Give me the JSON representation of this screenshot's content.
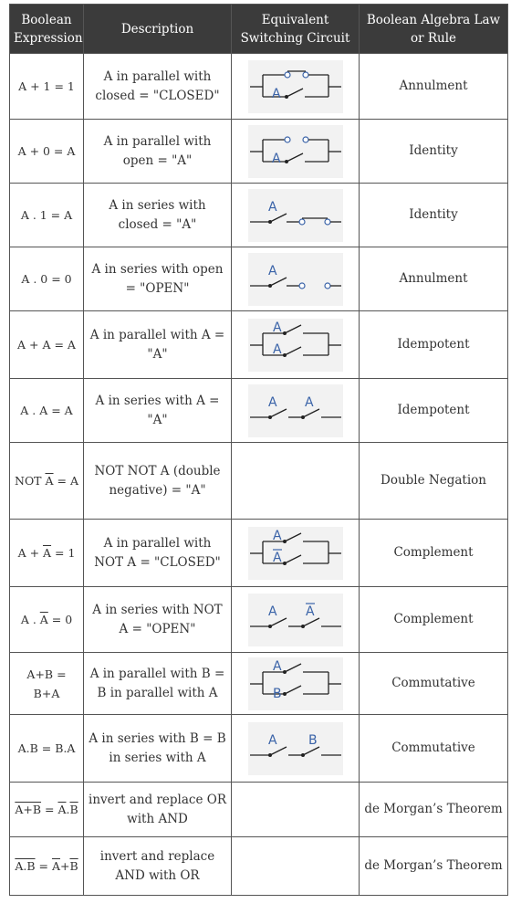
{
  "headers": {
    "expression": "Boolean Expression",
    "description": "Description",
    "circuit": "Equivalent Switching Circuit",
    "law": "Boolean Algebra Law or Rule"
  },
  "rows": [
    {
      "expr": "A + 1 = 1",
      "desc": "A in parallel with closed = \"CLOSED\"",
      "law": "Annulment",
      "circuit": "parallel-closed"
    },
    {
      "expr": "A + 0 = A",
      "desc": "A in parallel with open = \"A\"",
      "law": "Identity",
      "circuit": "parallel-open"
    },
    {
      "expr": "A . 1 = A",
      "desc": "A in series with closed = \"A\"",
      "law": "Identity",
      "circuit": "series-closed"
    },
    {
      "expr": "A . 0 = 0",
      "desc": "A in series with open = \"OPEN\"",
      "law": "Annulment",
      "circuit": "series-open"
    },
    {
      "expr": "A + A = A",
      "desc": "A in parallel with A = \"A\"",
      "law": "Idempotent",
      "circuit": "parallel-A-A"
    },
    {
      "expr": "A . A = A",
      "desc": "A in series with A = \"A\"",
      "law": "Idempotent",
      "circuit": "series-A-A"
    },
    {
      "expr_pre": "NOT ",
      "expr_ov": "A",
      "expr_post": " = A",
      "desc": "NOT NOT A (double negative) = \"A\"",
      "law": "Double Negation",
      "circuit": "none"
    },
    {
      "expr_pre": "A + ",
      "expr_ov": "A",
      "expr_post": " = 1",
      "desc": "A in parallel with NOT A = \"CLOSED\"",
      "law": "Complement",
      "circuit": "parallel-A-notA"
    },
    {
      "expr_pre": "A . ",
      "expr_ov": "A",
      "expr_post": " = 0",
      "desc": "A in series with NOT A = \"OPEN\"",
      "law": "Complement",
      "circuit": "series-A-notA"
    },
    {
      "expr": "A+B = B+A",
      "desc": "A in parallel with B = B in parallel with A",
      "law": "Commutative",
      "circuit": "parallel-A-B"
    },
    {
      "expr": "A.B = B.A",
      "desc": "A in series with B = B in series with A",
      "law": "Commutative",
      "circuit": "series-A-B"
    },
    {
      "expr_ov1": "A+B",
      "expr_mid": " = ",
      "expr_ov2": "A",
      "expr_dot": ".",
      "expr_ov3": "B",
      "desc": "invert and replace OR with AND",
      "law": "de Morgan’s Theorem",
      "circuit": "none"
    },
    {
      "expr_ov1": "A.B",
      "expr_mid": " = ",
      "expr_ov2": "A",
      "expr_dot": "+",
      "expr_ov3": "B",
      "desc": "invert and replace AND with OR",
      "law": "de Morgan’s Theorem",
      "circuit": "none"
    }
  ],
  "labels": {
    "a": "A",
    "b": "B",
    "not_a": "A"
  },
  "colors": {
    "header_bg": "#3b3b3b",
    "label_blue": "#3a63a8",
    "circuit_bg": "#f2f2f2"
  }
}
